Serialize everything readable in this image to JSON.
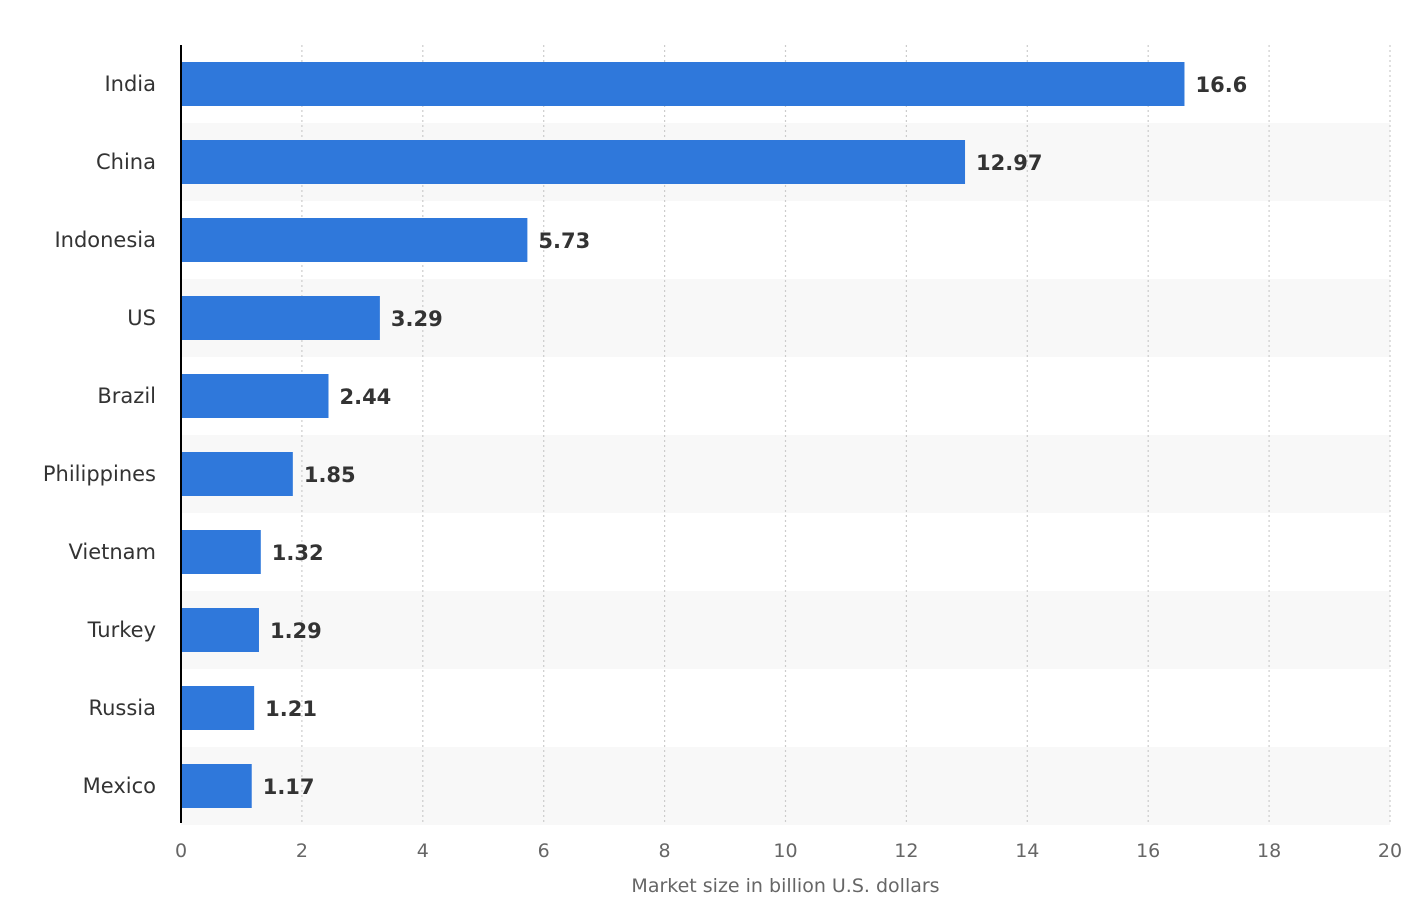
{
  "chart_data": {
    "type": "bar",
    "orientation": "horizontal",
    "categories": [
      "India",
      "China",
      "Indonesia",
      "US",
      "Brazil",
      "Philippines",
      "Vietnam",
      "Turkey",
      "Russia",
      "Mexico"
    ],
    "values": [
      16.6,
      12.97,
      5.73,
      3.29,
      2.44,
      1.85,
      1.32,
      1.29,
      1.21,
      1.17
    ],
    "value_labels": [
      "16.6",
      "12.97",
      "5.73",
      "3.29",
      "2.44",
      "1.85",
      "1.32",
      "1.29",
      "1.21",
      "1.17"
    ],
    "x_ticks": [
      "0",
      "2",
      "4",
      "6",
      "8",
      "10",
      "12",
      "14",
      "16",
      "18",
      "20"
    ],
    "xlim": [
      0,
      20
    ],
    "xlabel": "Market size in billion U.S. dollars",
    "grid": "vertical dotted",
    "alternating_row_bands": true,
    "bar_color": "#2f78db",
    "band_color": "#f8f8f8",
    "grid_color": "#cccccc",
    "axis_color": "#000000"
  }
}
